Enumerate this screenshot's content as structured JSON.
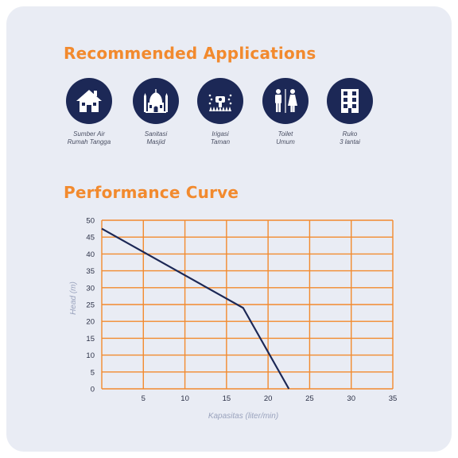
{
  "applications": {
    "title": "Recommended Applications",
    "items": [
      {
        "icon": "house-icon",
        "line1": "Sumber Air",
        "line2": "Rumah Tangga"
      },
      {
        "icon": "mosque-icon",
        "line1": "Sanitasi",
        "line2": "Masjid"
      },
      {
        "icon": "sprinkler-icon",
        "line1": "Irigasi",
        "line2": "Taman"
      },
      {
        "icon": "toilet-icon",
        "line1": "Toilet",
        "line2": "Umum"
      },
      {
        "icon": "building-icon",
        "line1": "Ruko",
        "line2": "3 lantai"
      }
    ]
  },
  "performance": {
    "title": "Performance Curve"
  },
  "colors": {
    "accent": "#f28a2e",
    "navy": "#1c2856",
    "background": "#e9ecf4",
    "axis_label": "#9aa3bd"
  },
  "chart_data": {
    "type": "line",
    "xlabel": "Kapasitas (liter/min)",
    "ylabel": "Head (m)",
    "xlim": [
      0,
      35
    ],
    "ylim": [
      0,
      50
    ],
    "x_ticks": [
      5,
      10,
      15,
      20,
      25,
      30,
      35
    ],
    "y_ticks": [
      0,
      5,
      10,
      15,
      20,
      25,
      30,
      35,
      40,
      45,
      50
    ],
    "grid": true,
    "series": [
      {
        "x": [
          0,
          17,
          22.5
        ],
        "y": [
          47.5,
          24,
          0
        ]
      }
    ]
  }
}
